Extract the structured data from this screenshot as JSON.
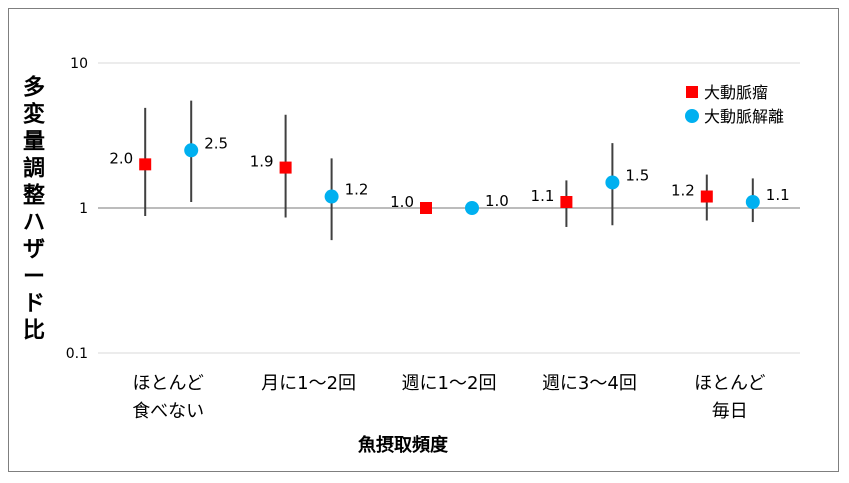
{
  "chart_data": {
    "type": "scatter",
    "title": "",
    "xlabel": "魚摂取頻度",
    "ylabel": "多変量調整ハザード比",
    "yscale": "log",
    "ylim": [
      0.1,
      10
    ],
    "yticks": [
      "10",
      "1",
      "0.1"
    ],
    "grid": true,
    "legend_position": "top-right",
    "categories": [
      [
        "ほとんど",
        "食べない"
      ],
      [
        "月に1～2回"
      ],
      [
        "週に1～2回"
      ],
      [
        "週に3～4回"
      ],
      [
        "ほとんど",
        "毎日"
      ]
    ],
    "series": [
      {
        "name": "大動脈瘤",
        "marker": "square",
        "color": "#ff0000",
        "values": [
          2.0,
          1.9,
          1.0,
          1.1,
          1.2
        ],
        "labels": [
          "2.0",
          "1.9",
          "1.0",
          "1.1",
          "1.2"
        ],
        "ci_low": [
          0.88,
          0.86,
          1.0,
          0.74,
          0.82
        ],
        "ci_high": [
          4.9,
          4.4,
          1.0,
          1.55,
          1.7
        ]
      },
      {
        "name": "大動脈解離",
        "marker": "circle",
        "color": "#00b0f0",
        "values": [
          2.5,
          1.2,
          1.0,
          1.5,
          1.1
        ],
        "labels": [
          "2.5",
          "1.2",
          "1.0",
          "1.5",
          "1.1"
        ],
        "ci_low": [
          1.1,
          0.6,
          1.0,
          0.76,
          0.8
        ],
        "ci_high": [
          5.5,
          2.2,
          1.0,
          2.8,
          1.6
        ]
      }
    ]
  }
}
